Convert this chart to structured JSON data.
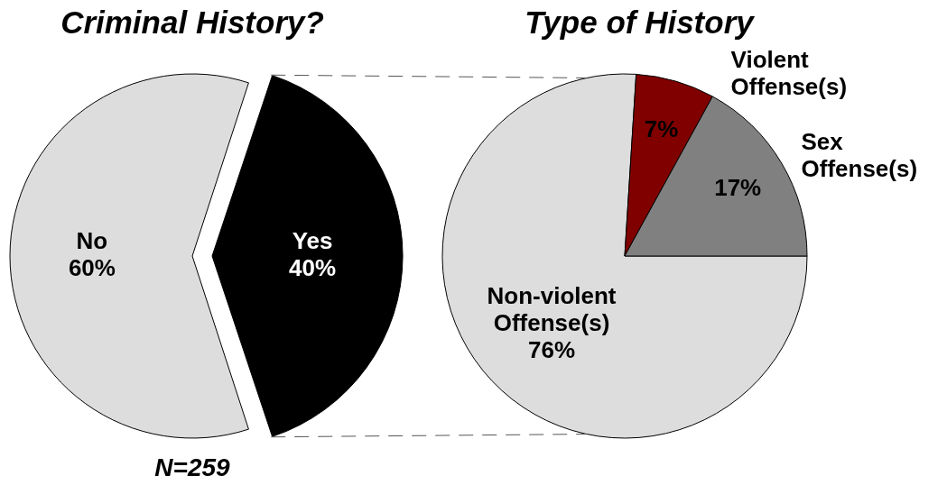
{
  "chart_data": [
    {
      "type": "pie",
      "title": "Criminal History?",
      "categories": [
        "No",
        "Yes"
      ],
      "values": [
        60,
        40
      ],
      "colors": [
        "#dddddd",
        "#000000"
      ],
      "value_labels": [
        "60%",
        "40%"
      ],
      "annotations": [
        "N=259"
      ]
    },
    {
      "type": "pie",
      "title": "Type of History",
      "categories": [
        "Non-violent Offense(s)",
        "Violent Offense(s)",
        "Sex Offense(s)"
      ],
      "values": [
        76,
        7,
        17
      ],
      "colors": [
        "#dddddd",
        "#800000",
        "#808080"
      ],
      "value_labels": [
        "76%",
        "7%",
        "17%"
      ]
    }
  ]
}
